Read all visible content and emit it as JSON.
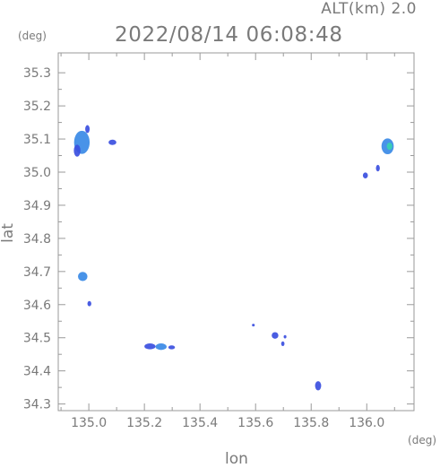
{
  "header": {
    "altitude": "ALT(km) 2.0",
    "datetime": "2022/08/14 06:08:48"
  },
  "chart_data": {
    "type": "scatter",
    "xlabel": "lon",
    "ylabel": "lat",
    "x_unit": "(deg)",
    "y_unit": "(deg)",
    "xlim": [
      134.89,
      136.17
    ],
    "ylim": [
      34.28,
      35.36
    ],
    "x_ticks": [
      135.0,
      135.2,
      135.4,
      135.6,
      135.8,
      136.0
    ],
    "x_tick_labels": [
      "135.0",
      "135.2",
      "135.4",
      "135.6",
      "135.8",
      "136.0"
    ],
    "y_ticks": [
      34.3,
      34.4,
      34.5,
      34.6,
      34.7,
      34.8,
      34.9,
      35.0,
      35.1,
      35.2,
      35.3
    ],
    "y_tick_labels": [
      "34.3",
      "34.4",
      "34.5",
      "34.6",
      "34.7",
      "34.8",
      "34.9",
      "35.0",
      "35.1",
      "35.2",
      "35.3"
    ],
    "grid": false,
    "colors": {
      "weak": "#3b4fe0",
      "medium": "#3a8ae6",
      "strong": "#38d3b0"
    },
    "echoes": [
      {
        "lon": 134.975,
        "lat": 35.09,
        "rx": 0.028,
        "ry": 0.035,
        "intensity": "medium"
      },
      {
        "lon": 134.958,
        "lat": 35.065,
        "rx": 0.012,
        "ry": 0.018,
        "intensity": "weak"
      },
      {
        "lon": 134.995,
        "lat": 35.13,
        "rx": 0.008,
        "ry": 0.012,
        "intensity": "weak"
      },
      {
        "lon": 135.085,
        "lat": 35.09,
        "rx": 0.014,
        "ry": 0.008,
        "intensity": "weak"
      },
      {
        "lon": 134.978,
        "lat": 34.685,
        "rx": 0.017,
        "ry": 0.014,
        "intensity": "medium"
      },
      {
        "lon": 135.002,
        "lat": 34.603,
        "rx": 0.007,
        "ry": 0.008,
        "intensity": "weak"
      },
      {
        "lon": 135.22,
        "lat": 34.474,
        "rx": 0.02,
        "ry": 0.009,
        "intensity": "weak"
      },
      {
        "lon": 135.26,
        "lat": 34.473,
        "rx": 0.02,
        "ry": 0.01,
        "intensity": "medium"
      },
      {
        "lon": 135.298,
        "lat": 34.471,
        "rx": 0.012,
        "ry": 0.006,
        "intensity": "weak"
      },
      {
        "lon": 135.592,
        "lat": 34.538,
        "rx": 0.005,
        "ry": 0.003,
        "intensity": "weak"
      },
      {
        "lon": 135.67,
        "lat": 34.507,
        "rx": 0.012,
        "ry": 0.01,
        "intensity": "weak"
      },
      {
        "lon": 135.698,
        "lat": 34.482,
        "rx": 0.006,
        "ry": 0.007,
        "intensity": "weak"
      },
      {
        "lon": 135.706,
        "lat": 34.503,
        "rx": 0.005,
        "ry": 0.005,
        "intensity": "weak"
      },
      {
        "lon": 135.825,
        "lat": 34.355,
        "rx": 0.011,
        "ry": 0.014,
        "intensity": "weak"
      },
      {
        "lon": 135.995,
        "lat": 34.99,
        "rx": 0.009,
        "ry": 0.009,
        "intensity": "weak"
      },
      {
        "lon": 136.04,
        "lat": 35.012,
        "rx": 0.007,
        "ry": 0.01,
        "intensity": "weak"
      },
      {
        "lon": 136.075,
        "lat": 35.078,
        "rx": 0.022,
        "ry": 0.024,
        "intensity": "medium"
      },
      {
        "lon": 136.082,
        "lat": 35.078,
        "rx": 0.01,
        "ry": 0.011,
        "intensity": "strong"
      }
    ]
  }
}
